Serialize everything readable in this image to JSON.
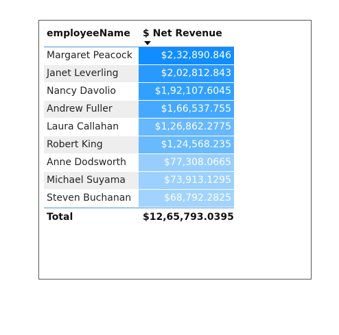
{
  "table": {
    "columns": {
      "name": "employeeName",
      "value": "$ Net Revenue"
    },
    "sort_icon": "caret-down-icon",
    "rows": [
      {
        "name": "Margaret Peacock",
        "value": "$2,32,890.846",
        "color": "#118dff"
      },
      {
        "name": "Janet Leverling",
        "value": "$2,02,812.843",
        "color": "#2a99ff"
      },
      {
        "name": "Nancy Davolio",
        "value": "$1,92,107.6045",
        "color": "#32a0ff"
      },
      {
        "name": "Andrew Fuller",
        "value": "$1,66,537.755",
        "color": "#46a9ff"
      },
      {
        "name": "Laura Callahan",
        "value": "$1,26,862.2775",
        "color": "#67b8ff"
      },
      {
        "name": "Robert King",
        "value": "$1,24,568.235",
        "color": "#69b9ff"
      },
      {
        "name": "Anne Dodsworth",
        "value": "$77,308.0665",
        "color": "#97ceff"
      },
      {
        "name": "Michael Suyama",
        "value": "$73,913.1295",
        "color": "#9bd0ff"
      },
      {
        "name": "Steven Buchanan",
        "value": "$68,792.2825",
        "color": "#a1d3ff"
      }
    ],
    "total": {
      "label": "Total",
      "value": "$12,65,793.0395"
    }
  }
}
